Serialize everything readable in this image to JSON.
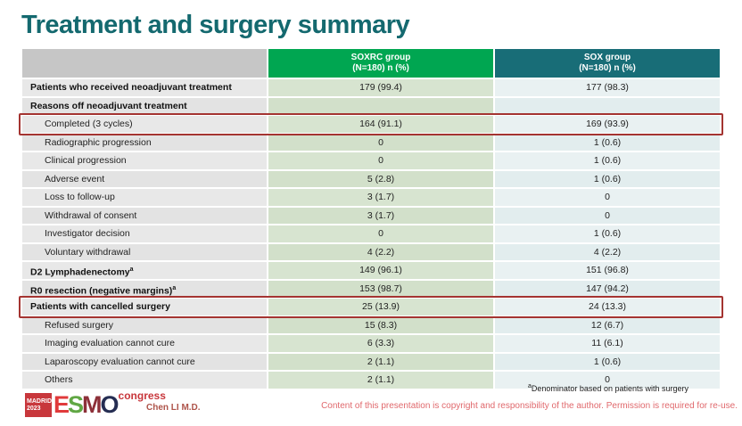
{
  "slide": {
    "title": "Treatment and surgery summary",
    "presenter": "Chen LI M.D.",
    "footnote": {
      "sup": "a",
      "text": "Denominator based on patients with surgery"
    },
    "copyright": "Content of this presentation is copyright and responsibility of the author. Permission is required for re-use.",
    "logo": {
      "badge_line1": "MADRID",
      "badge_line2": "2023",
      "congress": "congress",
      "letters": [
        {
          "ch": "E",
          "color": "#e03a3b"
        },
        {
          "ch": "S",
          "color": "#61a744"
        },
        {
          "ch": "M",
          "color": "#8d3039"
        },
        {
          "ch": "O",
          "color": "#252d52"
        }
      ]
    },
    "colors": {
      "title": "#14696f",
      "soxrc_header": "#00a651",
      "sox_header": "#186d77",
      "highlight_border": "#a43431",
      "copyright_text": "#e0686c"
    }
  },
  "table": {
    "columns": [
      {
        "line1": "SOXRC group",
        "line2": "(N=180)  n (%)",
        "color": "#00a651"
      },
      {
        "line1": "SOX group",
        "line2": "(N=180)  n (%)",
        "color": "#186d77"
      }
    ],
    "rows": [
      {
        "label": "Patients who received neoadjuvant treatment",
        "bold": true,
        "indent": false,
        "soxrc": "179 (99.4)",
        "sox": "177 (98.3)",
        "highlight": false
      },
      {
        "label": "Reasons off neoadjuvant treatment",
        "bold": true,
        "indent": false,
        "soxrc": "",
        "sox": "",
        "highlight": false
      },
      {
        "label": "Completed (3 cycles)",
        "bold": false,
        "indent": true,
        "soxrc": "164 (91.1)",
        "sox": "169 (93.9)",
        "highlight": true
      },
      {
        "label": "Radiographic progression",
        "bold": false,
        "indent": true,
        "soxrc": "0",
        "sox": "1 (0.6)",
        "highlight": false
      },
      {
        "label": "Clinical progression",
        "bold": false,
        "indent": true,
        "soxrc": "0",
        "sox": "1 (0.6)",
        "highlight": false
      },
      {
        "label": "Adverse event",
        "bold": false,
        "indent": true,
        "soxrc": "5 (2.8)",
        "sox": "1 (0.6)",
        "highlight": false
      },
      {
        "label": "Loss to follow-up",
        "bold": false,
        "indent": true,
        "soxrc": "3 (1.7)",
        "sox": "0",
        "highlight": false
      },
      {
        "label": "Withdrawal of consent",
        "bold": false,
        "indent": true,
        "soxrc": "3 (1.7)",
        "sox": "0",
        "highlight": false
      },
      {
        "label": "Investigator decision",
        "bold": false,
        "indent": true,
        "soxrc": "0",
        "sox": "1 (0.6)",
        "highlight": false
      },
      {
        "label": "Voluntary withdrawal",
        "bold": false,
        "indent": true,
        "soxrc": "4 (2.2)",
        "sox": "4 (2.2)",
        "highlight": false
      },
      {
        "label": "D2 Lymphadenectomy",
        "sup": "a",
        "bold": true,
        "indent": false,
        "soxrc": "149 (96.1)",
        "sox": "151 (96.8)",
        "highlight": false
      },
      {
        "label": "R0 resection (negative margins)",
        "sup": "a",
        "bold": true,
        "indent": false,
        "soxrc": "153 (98.7)",
        "sox": "147 (94.2)",
        "highlight": false
      },
      {
        "label": "Patients with cancelled surgery",
        "bold": true,
        "indent": false,
        "soxrc": "25 (13.9)",
        "sox": "24 (13.3)",
        "highlight": true
      },
      {
        "label": "Refused surgery",
        "bold": false,
        "indent": true,
        "soxrc": "15 (8.3)",
        "sox": "12 (6.7)",
        "highlight": false
      },
      {
        "label": "Imaging evaluation cannot cure",
        "bold": false,
        "indent": true,
        "soxrc": "6 (3.3)",
        "sox": "11 (6.1)",
        "highlight": false
      },
      {
        "label": "Laparoscopy evaluation cannot cure",
        "bold": false,
        "indent": true,
        "soxrc": "2 (1.1)",
        "sox": "1 (0.6)",
        "highlight": false
      },
      {
        "label": "Others",
        "bold": false,
        "indent": true,
        "soxrc": "2 (1.1)",
        "sox": "0",
        "highlight": false
      }
    ]
  }
}
